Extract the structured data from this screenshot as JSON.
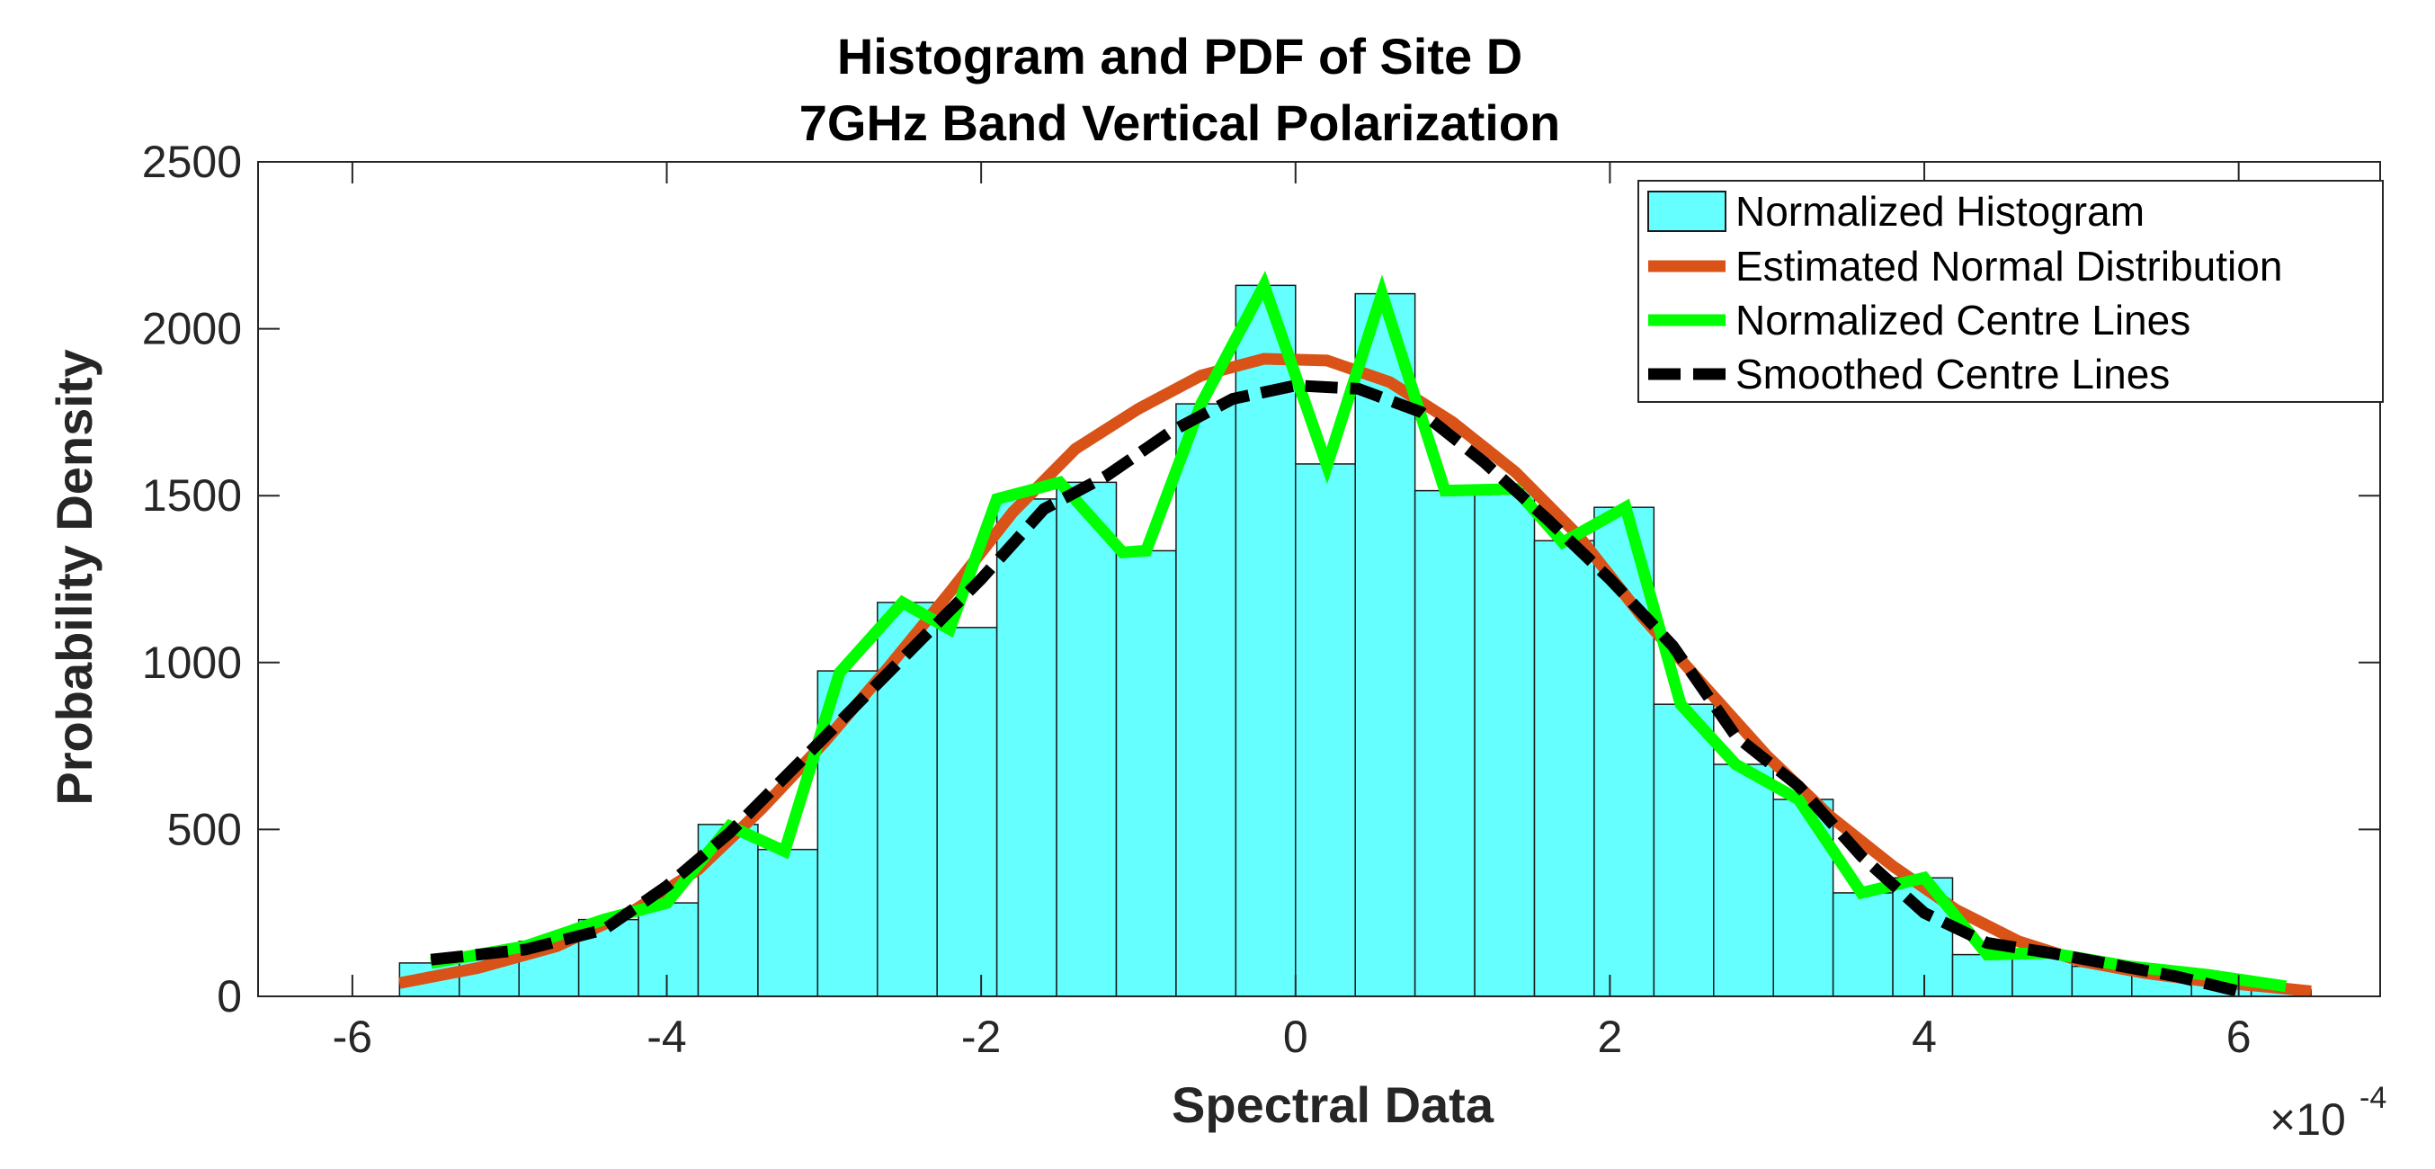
{
  "chart_data": {
    "type": "bar",
    "title": "Histogram and PDF of Site D",
    "subtitle": "7GHz Band Vertical Polarization",
    "xlabel": "Spectral Data",
    "ylabel": "Probability Density",
    "x_multiplier_base": "×10",
    "x_multiplier_exp": "-4",
    "xlim": [
      -6.6,
      6.9
    ],
    "ylim": [
      0,
      2500
    ],
    "xticks": [
      -6,
      -4,
      -2,
      0,
      2,
      4,
      6
    ],
    "xtick_labels": [
      "-6",
      "-4",
      "-2",
      "0",
      "2",
      "4",
      "6"
    ],
    "yticks": [
      0,
      500,
      1000,
      1500,
      2000,
      2500
    ],
    "ytick_labels": [
      "0",
      "500",
      "1000",
      "1500",
      "2000",
      "2500"
    ],
    "bin_edges": [
      -5.7,
      -5.32,
      -4.94,
      -4.56,
      -4.18,
      -3.8,
      -3.42,
      -3.04,
      -2.66,
      -2.28,
      -1.9,
      -1.52,
      -1.14,
      -0.76,
      -0.38,
      0.0,
      0.38,
      0.76,
      1.14,
      1.52,
      1.9,
      2.28,
      2.66,
      3.04,
      3.42,
      3.8,
      4.18,
      4.56,
      4.94,
      5.32,
      5.7,
      6.08,
      6.46
    ],
    "histogram_values": [
      100,
      120,
      165,
      230,
      280,
      515,
      440,
      975,
      1180,
      1105,
      1490,
      1540,
      1335,
      1775,
      2130,
      1595,
      2105,
      1515,
      1520,
      1365,
      1465,
      875,
      695,
      590,
      310,
      355,
      125,
      130,
      90,
      75,
      50,
      20
    ],
    "series": [
      {
        "name": "Estimated Normal Distribution",
        "color": "#d95319",
        "x": [
          -5.7,
          -5.2,
          -4.7,
          -4.2,
          -3.8,
          -3.4,
          -3.0,
          -2.6,
          -2.2,
          -1.8,
          -1.4,
          -1.0,
          -0.6,
          -0.2,
          0.2,
          0.6,
          1.0,
          1.4,
          1.8,
          2.2,
          2.6,
          3.0,
          3.4,
          3.8,
          4.2,
          4.6,
          5.0,
          5.4,
          5.8,
          6.2,
          6.46
        ],
        "y": [
          40,
          85,
          150,
          260,
          380,
          560,
          760,
          980,
          1210,
          1450,
          1640,
          1760,
          1860,
          1910,
          1905,
          1840,
          1720,
          1570,
          1380,
          1140,
          930,
          720,
          540,
          390,
          260,
          165,
          105,
          70,
          45,
          28,
          15
        ]
      },
      {
        "name": "Normalized Centre Lines",
        "color": "#00ff00",
        "x": [
          -5.5,
          -4.9,
          -4.4,
          -4.0,
          -3.6,
          -3.25,
          -2.9,
          -2.5,
          -2.2,
          -1.9,
          -1.5,
          -1.1,
          -0.95,
          -0.6,
          -0.2,
          0.2,
          0.55,
          0.95,
          1.4,
          1.7,
          2.1,
          2.45,
          2.8,
          3.2,
          3.6,
          4.0,
          4.4,
          4.8,
          5.3,
          5.8,
          6.3
        ],
        "y": [
          100,
          150,
          230,
          280,
          510,
          435,
          970,
          1180,
          1100,
          1490,
          1540,
          1330,
          1335,
          1775,
          2130,
          1590,
          2105,
          1515,
          1520,
          1360,
          1465,
          875,
          695,
          590,
          310,
          355,
          125,
          130,
          90,
          65,
          30
        ]
      },
      {
        "name": "Smoothed Centre Lines",
        "color": "#000000",
        "x": [
          -5.5,
          -4.9,
          -4.4,
          -4.0,
          -3.6,
          -3.2,
          -2.8,
          -2.4,
          -2.0,
          -1.6,
          -1.2,
          -0.8,
          -0.4,
          0.0,
          0.4,
          0.8,
          1.2,
          1.6,
          2.0,
          2.4,
          2.8,
          3.2,
          3.6,
          4.0,
          4.4,
          4.8,
          5.2,
          5.6,
          6.0
        ],
        "y": [
          110,
          140,
          200,
          330,
          490,
          680,
          870,
          1060,
          1250,
          1460,
          1560,
          1690,
          1790,
          1830,
          1820,
          1750,
          1600,
          1430,
          1250,
          1050,
          780,
          630,
          420,
          250,
          160,
          130,
          95,
          60,
          15
        ]
      }
    ],
    "legend": {
      "position": "top-right",
      "entries": [
        "Normalized Histogram",
        "Estimated Normal Distribution",
        "Normalized Centre Lines",
        "Smoothed Centre Lines"
      ]
    },
    "colors": {
      "histogram_fill": "#66ffff",
      "histogram_edge": "#1a1a1a",
      "axis": "#262626"
    }
  }
}
